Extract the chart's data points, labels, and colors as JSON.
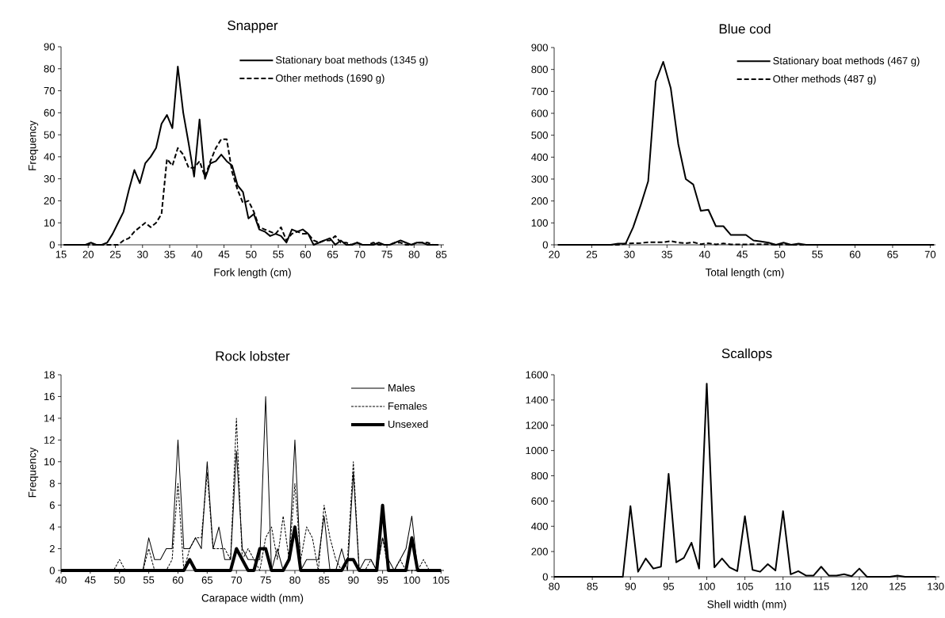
{
  "chart_data": [
    {
      "type": "line",
      "title": "Snapper",
      "xlabel": "Fork length (cm)",
      "ylabel": "Frequency",
      "marker": "none",
      "legend": "top right",
      "xlim": [
        15,
        85.5
      ],
      "ylim": [
        0,
        90
      ],
      "xticks": [
        15,
        20,
        25,
        30,
        35,
        40,
        45,
        50,
        55,
        60,
        65,
        70,
        75,
        80,
        85
      ],
      "yticks": [
        0,
        10,
        20,
        30,
        40,
        50,
        60,
        70,
        80,
        90
      ],
      "x": [
        15.5,
        16.5,
        17.5,
        18.5,
        19.5,
        20.5,
        21.5,
        22.5,
        23.5,
        24.5,
        25.5,
        26.5,
        27.5,
        28.5,
        29.5,
        30.5,
        31.5,
        32.5,
        33.5,
        34.5,
        35.5,
        36.5,
        37.5,
        38.5,
        39.5,
        40.5,
        41.5,
        42.5,
        43.5,
        44.5,
        45.5,
        46.5,
        47.5,
        48.5,
        49.5,
        50.5,
        51.5,
        52.5,
        53.5,
        54.5,
        55.5,
        56.5,
        57.5,
        58.5,
        59.5,
        60.5,
        61.5,
        62.5,
        63.5,
        64.5,
        65.5,
        66.5,
        67.5,
        68.5,
        69.5,
        70.5,
        71.5,
        72.5,
        73.5,
        74.5,
        75.5,
        76.5,
        77.5,
        78.5,
        79.5,
        80.5,
        81.5,
        82.5,
        83.5,
        84.5
      ],
      "series": [
        {
          "name": "Stationary boat methods (1345 g)",
          "color": "#000000",
          "line_style": "solid",
          "values": [
            0,
            0,
            0,
            0,
            0,
            1,
            0,
            0,
            1,
            5,
            10,
            15,
            25,
            34,
            28,
            37,
            40,
            44,
            55,
            59,
            53,
            81,
            60,
            46,
            31,
            57,
            30,
            37,
            38,
            41,
            38,
            36,
            27,
            24,
            12,
            14,
            7,
            6,
            4,
            5,
            4,
            1,
            7,
            6,
            7,
            5,
            0,
            1,
            2,
            3,
            0,
            2,
            0,
            0,
            1,
            0,
            0,
            0,
            1,
            0,
            0,
            1,
            2,
            1,
            0,
            1,
            1,
            0,
            0,
            0
          ]
        },
        {
          "name": "Other methods (1690 g)",
          "color": "#000000",
          "line_style": "dashed",
          "values": [
            0,
            0,
            0,
            0,
            0,
            0,
            0,
            0,
            0,
            0,
            0,
            2,
            3,
            6,
            8,
            10,
            8,
            10,
            14,
            39,
            36,
            44,
            41,
            35,
            35,
            38,
            31,
            38,
            44,
            48,
            48,
            33,
            25,
            19,
            20,
            15,
            8,
            7,
            6,
            5,
            8,
            2,
            5,
            6,
            5,
            5,
            2,
            1,
            2,
            2,
            4,
            1,
            1,
            0,
            1,
            0,
            0,
            1,
            0,
            0,
            0,
            1,
            1,
            0,
            0,
            1,
            1,
            1,
            0,
            0
          ]
        }
      ]
    },
    {
      "type": "line",
      "title": "Blue cod",
      "xlabel": "Total length (cm)",
      "marker": "none",
      "legend": "top right",
      "xlim": [
        20,
        70.7
      ],
      "ylim": [
        0,
        900
      ],
      "xticks": [
        20,
        25,
        30,
        35,
        40,
        45,
        50,
        55,
        60,
        65,
        70
      ],
      "yticks": [
        0,
        100,
        200,
        300,
        400,
        500,
        600,
        700,
        800,
        900
      ],
      "x": [
        20.5,
        21.5,
        22.5,
        23.5,
        24.5,
        25.5,
        26.5,
        27.5,
        28.5,
        29.5,
        30.5,
        31.5,
        32.5,
        33.5,
        34.5,
        35.5,
        36.5,
        37.5,
        38.5,
        39.5,
        40.5,
        41.5,
        42.5,
        43.5,
        44.5,
        45.5,
        46.5,
        47.5,
        48.5,
        49.5,
        50.5,
        51.5,
        52.5,
        53.5,
        54.5,
        55.5,
        56.5,
        57.5,
        58.5,
        59.5,
        60.5,
        61.5,
        62.5,
        63.5,
        64.5,
        65.5,
        66.5,
        67.5,
        68.5,
        69.5,
        70.5
      ],
      "series": [
        {
          "name": "Stationary boat methods (467 g)",
          "color": "#000000",
          "line_style": "solid",
          "values": [
            0,
            0,
            0,
            0,
            0,
            0,
            0,
            0,
            5,
            5,
            80,
            180,
            290,
            745,
            835,
            715,
            460,
            300,
            275,
            155,
            160,
            85,
            85,
            45,
            45,
            45,
            20,
            15,
            10,
            0,
            10,
            0,
            5,
            0,
            0,
            0,
            0,
            0,
            0,
            0,
            0,
            0,
            0,
            0,
            0,
            0,
            0,
            0,
            0,
            0,
            0
          ]
        },
        {
          "name": "Other methods (487 g)",
          "color": "#000000",
          "line_style": "dashed",
          "values": [
            0,
            0,
            0,
            0,
            0,
            0,
            0,
            0,
            0,
            5,
            7,
            8,
            12,
            12,
            12,
            17,
            10,
            7,
            12,
            3,
            7,
            2,
            6,
            2,
            2,
            2,
            3,
            3,
            3,
            0,
            2,
            0,
            0,
            0,
            0,
            0,
            0,
            0,
            0,
            0,
            0,
            0,
            0,
            0,
            0,
            0,
            0,
            0,
            0,
            0,
            0
          ]
        }
      ]
    },
    {
      "type": "line",
      "title": "Rock lobster",
      "xlabel": "Carapace width (mm)",
      "ylabel": "Frequency",
      "marker": "none",
      "legend": "top right",
      "xlim": [
        40,
        105.5
      ],
      "ylim": [
        0,
        18
      ],
      "xticks": [
        40,
        45,
        50,
        55,
        60,
        65,
        70,
        75,
        80,
        85,
        90,
        95,
        100,
        105
      ],
      "yticks": [
        0,
        2,
        4,
        6,
        8,
        10,
        12,
        14,
        16,
        18
      ],
      "x": [
        40,
        41,
        42,
        43,
        44,
        45,
        46,
        47,
        48,
        49,
        50,
        51,
        52,
        53,
        54,
        55,
        56,
        57,
        58,
        59,
        60,
        61,
        62,
        63,
        64,
        65,
        66,
        67,
        68,
        69,
        70,
        71,
        72,
        73,
        74,
        75,
        76,
        77,
        78,
        79,
        80,
        81,
        82,
        83,
        84,
        85,
        86,
        87,
        88,
        89,
        90,
        91,
        92,
        93,
        94,
        95,
        96,
        97,
        98,
        99,
        100,
        101,
        102,
        103,
        104,
        105
      ],
      "series": [
        {
          "name": "Males",
          "color": "#000000",
          "line_style": "solid",
          "values": [
            0,
            0,
            0,
            0,
            0,
            0,
            0,
            0,
            0,
            0,
            0,
            0,
            0,
            0,
            0,
            3,
            1,
            1,
            2,
            2,
            12,
            2,
            2,
            3,
            2,
            10,
            2,
            4,
            1,
            1,
            11,
            2,
            1,
            1,
            1,
            16,
            0,
            2,
            0,
            1,
            12,
            0,
            1,
            1,
            1,
            5,
            0,
            0,
            2,
            0,
            9,
            0,
            1,
            1,
            0,
            3,
            1,
            0,
            1,
            2,
            5,
            0,
            0,
            0,
            0,
            0
          ]
        },
        {
          "name": "Females",
          "color": "#000000",
          "line_style": "dashed",
          "values": [
            0,
            0,
            0,
            0,
            0,
            0,
            0,
            0,
            0,
            0,
            1,
            0,
            0,
            0,
            0,
            2,
            0,
            0,
            0,
            1,
            8,
            0,
            2,
            3,
            3,
            9,
            2,
            2,
            2,
            1,
            14,
            1,
            2,
            1,
            0,
            3,
            4,
            1,
            5,
            1,
            8,
            1,
            4,
            3,
            0,
            6,
            3,
            1,
            0,
            1,
            10,
            0,
            0,
            1,
            0,
            3,
            0,
            0,
            1,
            0,
            0,
            0,
            1,
            0,
            0,
            0
          ]
        },
        {
          "name": "Unsexed",
          "color": "#000000",
          "line_style": "solid",
          "values": [
            0,
            0,
            0,
            0,
            0,
            0,
            0,
            0,
            0,
            0,
            0,
            0,
            0,
            0,
            0,
            0,
            0,
            0,
            0,
            0,
            0,
            0,
            1,
            0,
            0,
            0,
            0,
            0,
            0,
            0,
            2,
            1,
            0,
            0,
            2,
            2,
            0,
            0,
            0,
            1,
            4,
            0,
            0,
            0,
            0,
            0,
            0,
            0,
            0,
            1,
            1,
            0,
            0,
            0,
            0,
            6,
            0,
            0,
            0,
            0,
            3,
            0,
            0,
            0,
            0,
            0
          ]
        }
      ]
    },
    {
      "type": "line",
      "title": "Scallops",
      "xlabel": "Shell width (mm)",
      "marker": "none",
      "xlim": [
        80,
        130.5
      ],
      "ylim": [
        0,
        1600
      ],
      "xticks": [
        80,
        85,
        90,
        95,
        100,
        105,
        110,
        115,
        120,
        125,
        130
      ],
      "yticks": [
        0,
        200,
        400,
        600,
        800,
        1000,
        1200,
        1400,
        1600
      ],
      "x": [
        80,
        81,
        82,
        83,
        84,
        85,
        86,
        87,
        88,
        89,
        90,
        91,
        92,
        93,
        94,
        95,
        96,
        97,
        98,
        99,
        100,
        101,
        102,
        103,
        104,
        105,
        106,
        107,
        108,
        109,
        110,
        111,
        112,
        113,
        114,
        115,
        116,
        117,
        118,
        119,
        120,
        121,
        122,
        123,
        124,
        125,
        126,
        127,
        128,
        129,
        130
      ],
      "series": [
        {
          "color": "#000000",
          "line_style": "solid",
          "values": [
            0,
            0,
            0,
            0,
            0,
            0,
            0,
            0,
            0,
            0,
            560,
            40,
            145,
            65,
            80,
            815,
            115,
            150,
            270,
            65,
            1530,
            75,
            145,
            75,
            45,
            480,
            55,
            40,
            100,
            50,
            520,
            20,
            45,
            10,
            10,
            80,
            10,
            10,
            20,
            5,
            65,
            0,
            0,
            0,
            0,
            10,
            0,
            0,
            0,
            0,
            0
          ]
        }
      ]
    }
  ]
}
